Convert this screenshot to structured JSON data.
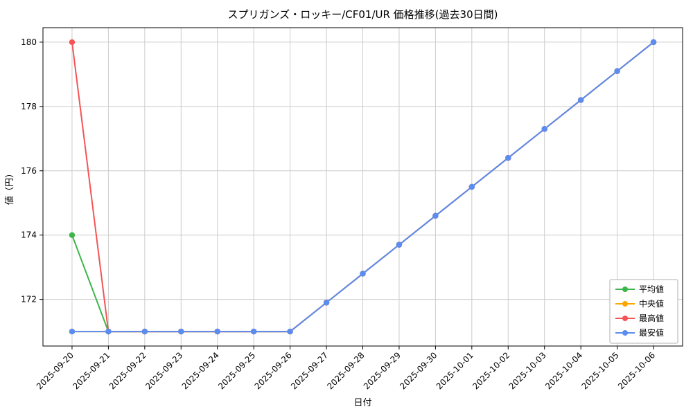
{
  "page": {
    "background": "#ffffff"
  },
  "chart_data": {
    "type": "line",
    "title": "スプリガンズ・ロッキー/CF01/UR 価格推移(過去30日間)",
    "xlabel": "日付",
    "ylabel": "値（円）",
    "categories": [
      "2025-09-20",
      "2025-09-21",
      "2025-09-22",
      "2025-09-23",
      "2025-09-24",
      "2025-09-25",
      "2025-09-26",
      "2025-09-27",
      "2025-09-28",
      "2025-09-29",
      "2025-09-30",
      "2025-10-01",
      "2025-10-02",
      "2025-10-03",
      "2025-10-04",
      "2025-10-05",
      "2025-10-06"
    ],
    "series": [
      {
        "key": "average",
        "name": "平均値",
        "color": "#3cb54a",
        "values": [
          174,
          171,
          171,
          171,
          171,
          171,
          171,
          171.9,
          172.8,
          173.7,
          174.6,
          175.5,
          176.4,
          177.3,
          178.2,
          179.1,
          180
        ]
      },
      {
        "key": "median",
        "name": "中央値",
        "color": "#ffa500",
        "values": [
          171,
          171,
          171,
          171,
          171,
          171,
          171,
          171.9,
          172.8,
          173.7,
          174.6,
          175.5,
          176.4,
          177.3,
          178.2,
          179.1,
          180
        ]
      },
      {
        "key": "highest",
        "name": "最高値",
        "color": "#f65354",
        "values": [
          180,
          171,
          171,
          171,
          171,
          171,
          171,
          171.9,
          172.8,
          173.7,
          174.6,
          175.5,
          176.4,
          177.3,
          178.2,
          179.1,
          180
        ]
      },
      {
        "key": "lowest",
        "name": "最安値",
        "color": "#5a8cf1",
        "values": [
          171,
          171,
          171,
          171,
          171,
          171,
          171,
          171.9,
          172.8,
          173.7,
          174.6,
          175.5,
          176.4,
          177.3,
          178.2,
          179.1,
          180
        ]
      }
    ],
    "yticks": [
      172,
      174,
      176,
      178,
      180
    ],
    "ylim": [
      170.55,
      180.45
    ],
    "grid": true,
    "grid_color": "#cccccc",
    "legend_position": "lower right"
  }
}
